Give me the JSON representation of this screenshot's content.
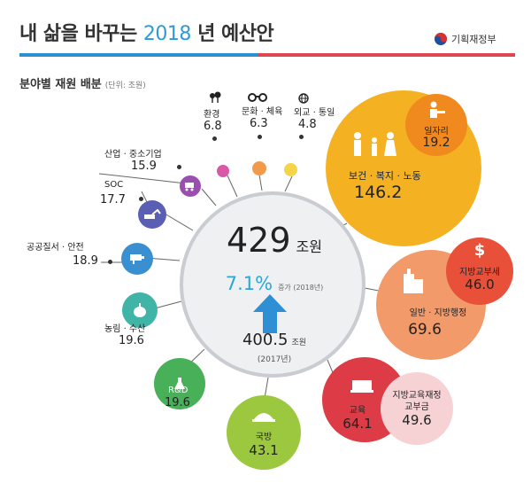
{
  "header": {
    "title_prefix": "내 삶을 바꾸는 ",
    "title_year": "2018",
    "title_suffix": " 년 예산안",
    "ministry": "기획재정부"
  },
  "subtitle": {
    "text": "분야별 재원 배분",
    "unit": "(단위: 조원)"
  },
  "center": {
    "total": "429",
    "total_unit": "조원",
    "growth": "7.1%",
    "growth_label": "증가 (2018년)",
    "prev": "400.5",
    "prev_unit": "조원",
    "prev_year": "(2017년)"
  },
  "sectors": {
    "environment": {
      "label": "환경",
      "value": "6.8"
    },
    "culture": {
      "label": "문화 · 체육",
      "value": "6.3"
    },
    "diplomacy": {
      "label": "외교 · 통일",
      "value": "4.8"
    },
    "industry": {
      "label": "산업 · 중소기업",
      "value": "15.9"
    },
    "soc": {
      "label": "SOC",
      "value": "17.7"
    },
    "safety": {
      "label": "공공질서 · 안전",
      "value": "18.9"
    },
    "agriculture": {
      "label": "농림 · 수산",
      "value": "19.6"
    },
    "rnd": {
      "label": "R&D",
      "value": "19.6"
    },
    "defense": {
      "label": "국방",
      "value": "43.1"
    },
    "education": {
      "label": "교육",
      "value": "64.1"
    },
    "edu_grant": {
      "label1": "지방교육재정",
      "label2": "교부금",
      "value": "49.6"
    },
    "general_admin": {
      "label": "일반 · 지방행정",
      "value": "69.6"
    },
    "local_grant": {
      "label": "지방교부세",
      "value": "46.0"
    },
    "welfare": {
      "label": "보건 · 복지 · 노동",
      "value": "146.2"
    },
    "jobs": {
      "label": "일자리",
      "value": "19.2"
    }
  },
  "colors": {
    "welfare": "#f4b223",
    "jobs": "#f08a1e",
    "general_admin": "#f29a6a",
    "local_grant": "#e8503a",
    "education": "#dd3b45",
    "edu_grant": "#f6d2d5",
    "defense": "#9cc840",
    "rnd": "#49b05a",
    "agriculture": "#3fb4a7",
    "safety": "#3a8fd0",
    "soc": "#5a5fb4",
    "industry": "#9a4fb0",
    "environment": "#d958a7",
    "culture": "#f29a4a",
    "diplomacy": "#f5d547"
  }
}
